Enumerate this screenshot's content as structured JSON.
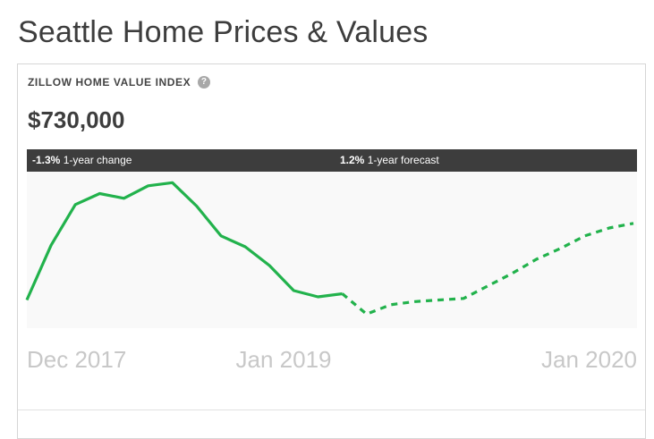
{
  "page": {
    "title": "Seattle Home Prices & Values"
  },
  "zhvi": {
    "label": "ZILLOW HOME VALUE INDEX",
    "help_icon": "question-mark-icon",
    "value": "$730,000",
    "change": {
      "value": "-1.3%",
      "label": "1-year change"
    },
    "forecast": {
      "value": "1.2%",
      "label": "1-year forecast"
    }
  },
  "colors": {
    "line": "#22b24c",
    "plot_bg": "#f9f9f9",
    "bar_bg": "#3d3d3d",
    "tick_text": "#c8c8c8"
  },
  "chart_data": {
    "type": "line",
    "x_tick_labels": [
      "Dec 2017",
      "Jan 2019",
      "Jan 2020"
    ],
    "series": [
      {
        "style": "solid",
        "points": [
          {
            "x": "2017-12",
            "y": 0.18
          },
          {
            "x": "2018-01",
            "y": 0.53
          },
          {
            "x": "2018-02",
            "y": 0.79
          },
          {
            "x": "2018-03",
            "y": 0.86
          },
          {
            "x": "2018-04",
            "y": 0.83
          },
          {
            "x": "2018-05",
            "y": 0.91
          },
          {
            "x": "2018-06",
            "y": 0.93
          },
          {
            "x": "2018-07",
            "y": 0.78
          },
          {
            "x": "2018-08",
            "y": 0.59
          },
          {
            "x": "2018-09",
            "y": 0.52
          },
          {
            "x": "2018-10",
            "y": 0.4
          },
          {
            "x": "2018-11",
            "y": 0.24
          },
          {
            "x": "2018-12",
            "y": 0.2
          },
          {
            "x": "2019-01",
            "y": 0.22
          }
        ]
      },
      {
        "style": "dashed",
        "points": [
          {
            "x": "2019-01",
            "y": 0.22
          },
          {
            "x": "2019-02",
            "y": 0.09
          },
          {
            "x": "2019-03",
            "y": 0.15
          },
          {
            "x": "2019-04",
            "y": 0.17
          },
          {
            "x": "2019-05",
            "y": 0.18
          },
          {
            "x": "2019-06",
            "y": 0.19
          },
          {
            "x": "2019-07",
            "y": 0.27
          },
          {
            "x": "2019-08",
            "y": 0.35
          },
          {
            "x": "2019-09",
            "y": 0.44
          },
          {
            "x": "2019-10",
            "y": 0.51
          },
          {
            "x": "2019-11",
            "y": 0.59
          },
          {
            "x": "2019-12",
            "y": 0.64
          },
          {
            "x": "2020-01",
            "y": 0.67
          }
        ]
      }
    ],
    "ylim": [
      0,
      1
    ],
    "grid": false
  }
}
